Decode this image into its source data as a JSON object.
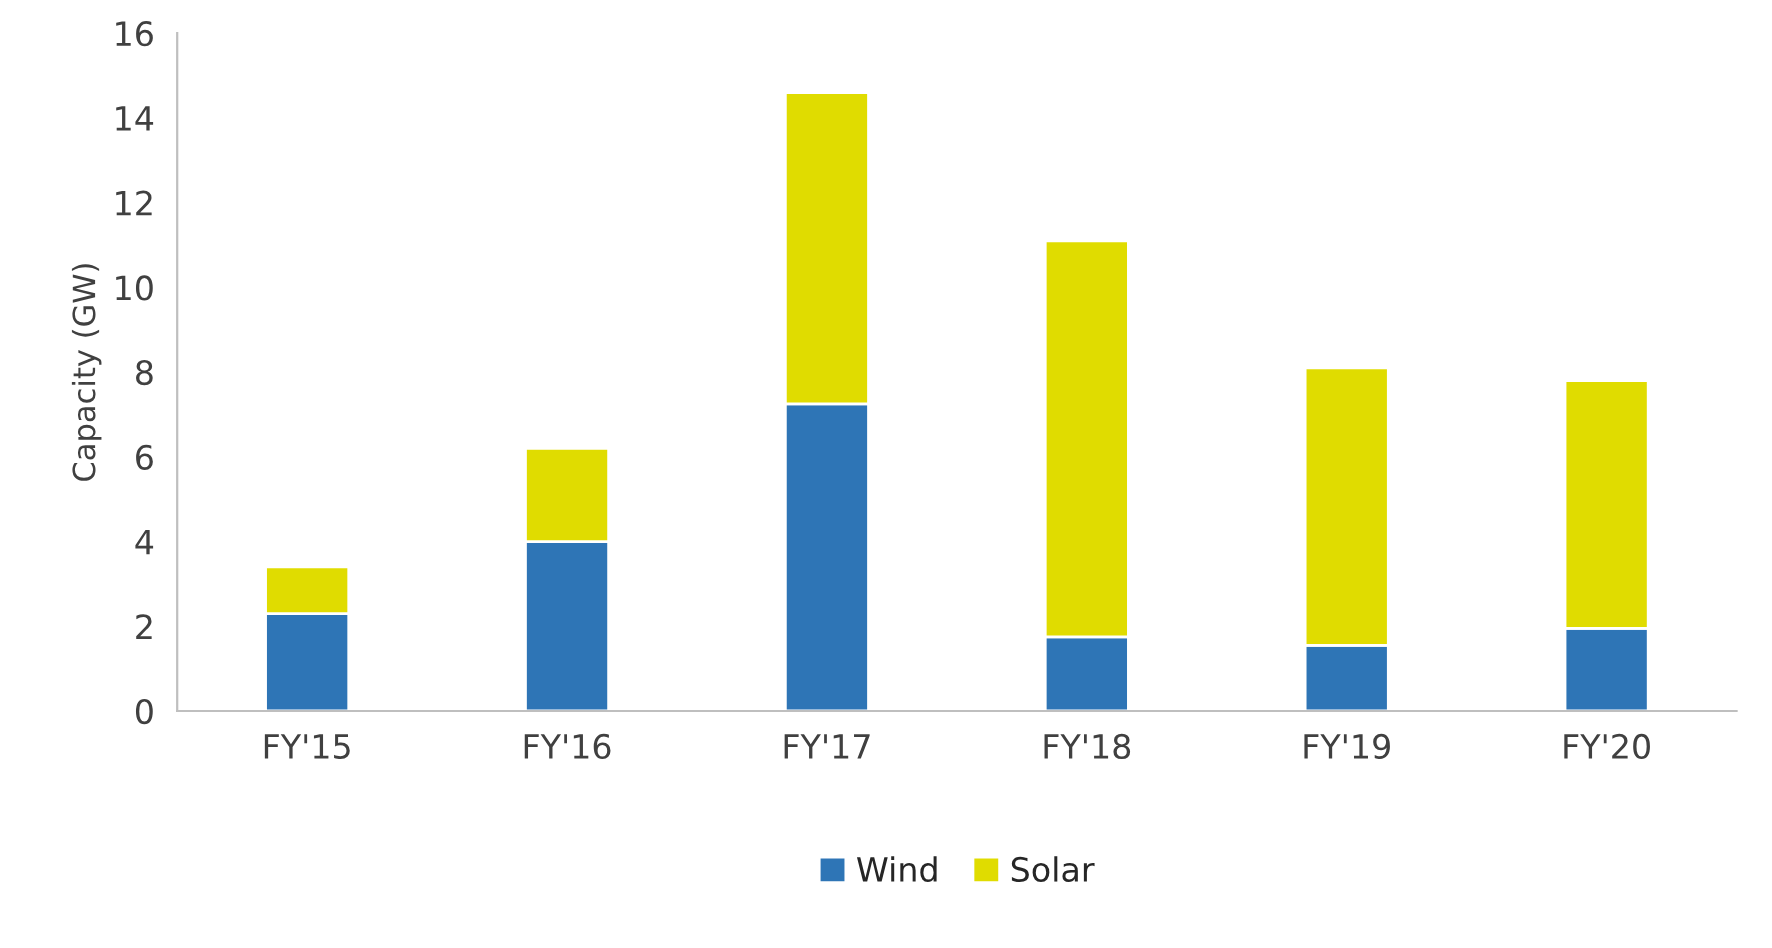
{
  "chart_data": {
    "type": "bar",
    "stacked": true,
    "ylabel": "Capacity (GW)",
    "categories": [
      "FY'15",
      "FY'16",
      "FY'17",
      "FY'18",
      "FY'19",
      "FY'20"
    ],
    "series": [
      {
        "name": "Wind",
        "color": "#2e75b6",
        "values": [
          2.3,
          4.0,
          7.25,
          1.75,
          1.55,
          1.95
        ]
      },
      {
        "name": "Solar",
        "color": "#e0dc00",
        "values": [
          1.1,
          2.2,
          7.35,
          9.35,
          6.55,
          5.85
        ]
      }
    ],
    "ylim": [
      0,
      16
    ],
    "yticks": [
      0,
      2,
      4,
      6,
      8,
      10,
      12,
      14,
      16
    ],
    "grid": false,
    "legend": "bottom"
  }
}
